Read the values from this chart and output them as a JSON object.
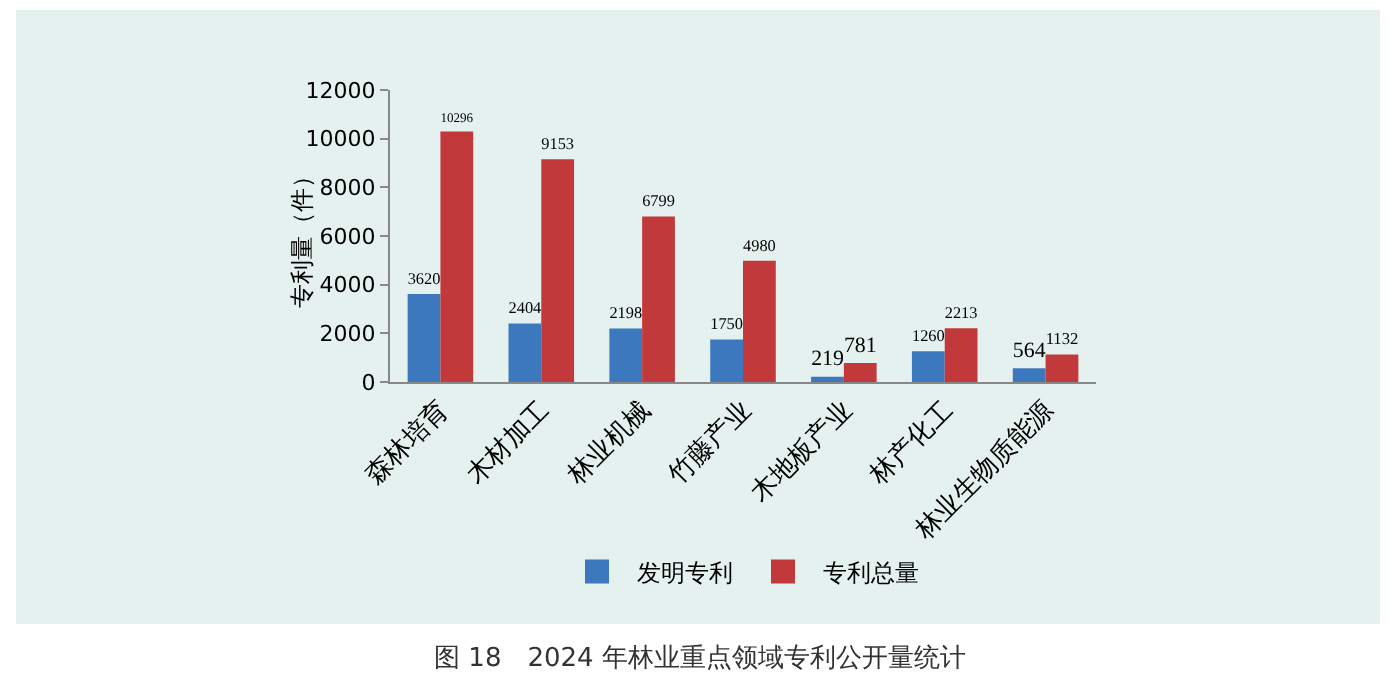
{
  "chart_data": {
    "type": "bar",
    "ylabel": "专利量（件）",
    "categories": [
      "森林培育",
      "木材加工",
      "林业机械",
      "竹藤产业",
      "木地板产业",
      "林产化工",
      "林业生物质能源"
    ],
    "series": [
      {
        "name": "发明专利",
        "color": "#3b78bd",
        "values": [
          3620,
          2404,
          2198,
          1750,
          219,
          1260,
          564
        ]
      },
      {
        "name": "专利总量",
        "color": "#c2393c",
        "values": [
          10296,
          9153,
          6799,
          4980,
          781,
          2213,
          1132
        ]
      }
    ],
    "ylim": [
      0,
      12000
    ],
    "yticks": [
      0,
      2000,
      4000,
      6000,
      8000,
      10000,
      12000
    ],
    "grid": false,
    "legend": "bottom",
    "data_labels": true,
    "annotations": [
      "图 18　2024 年林业重点领域专利公开量统计"
    ]
  }
}
